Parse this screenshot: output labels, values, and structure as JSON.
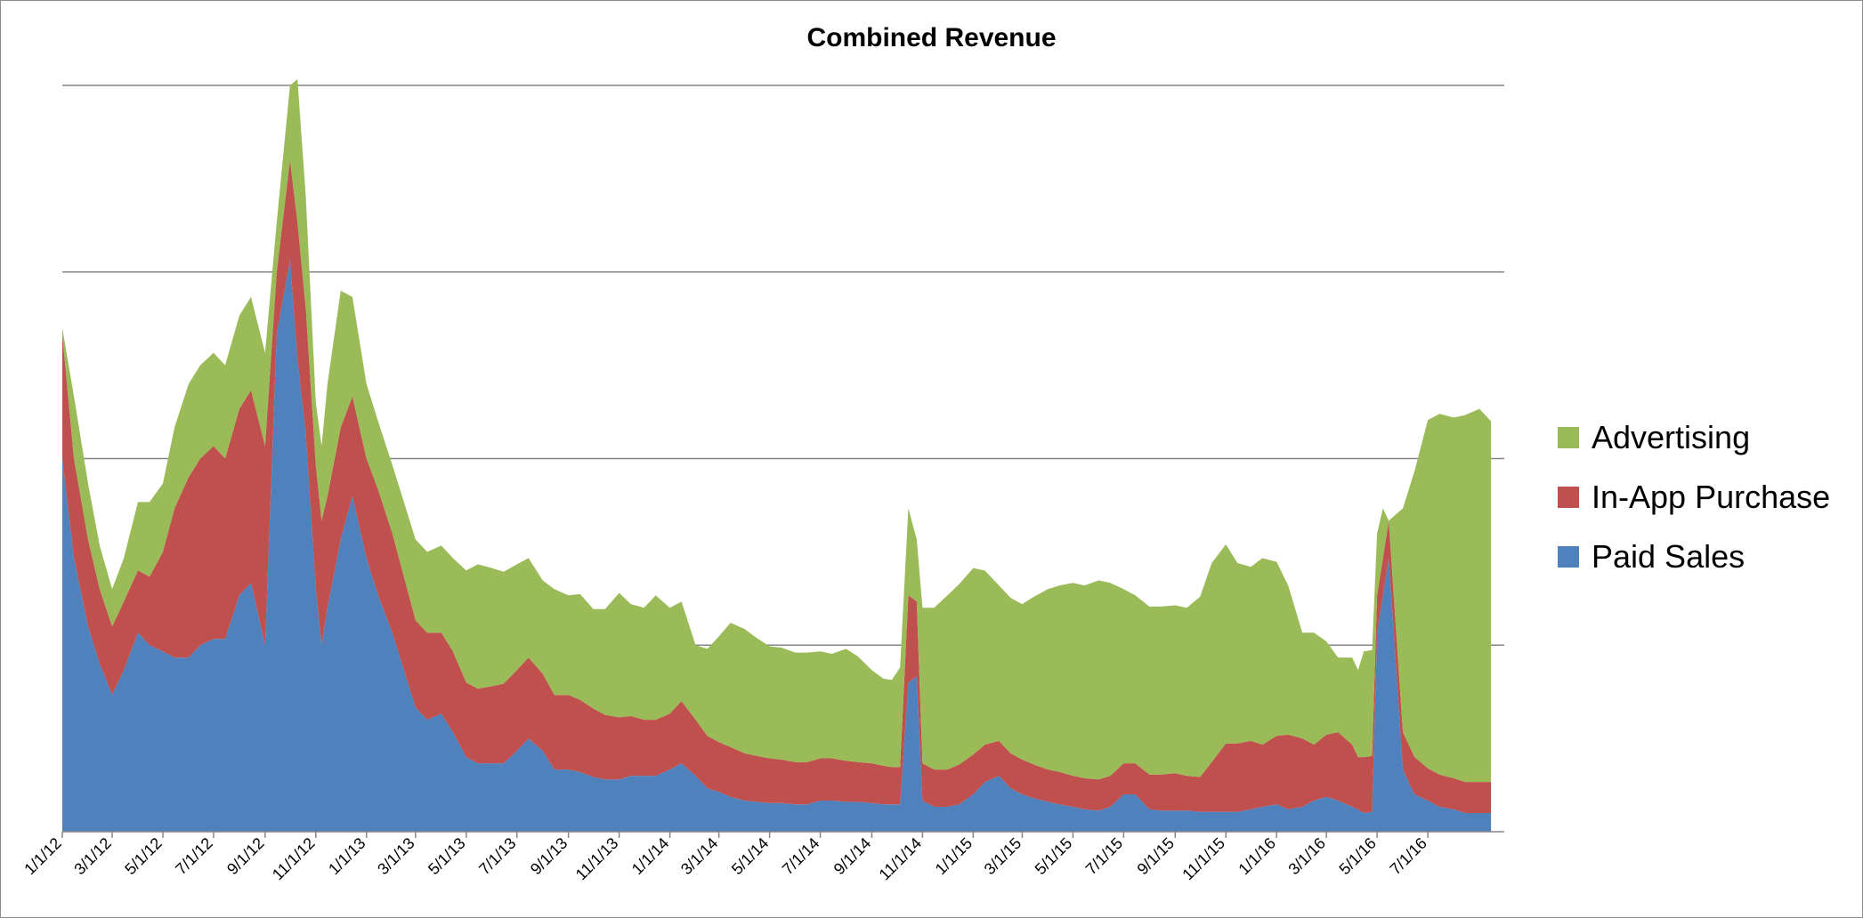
{
  "chart_data": {
    "type": "area",
    "stacked": true,
    "title": "Combined Revenue",
    "xlabel": "",
    "ylabel": "",
    "grid": true,
    "legend_position": "right",
    "y_tick_labels_shown": false,
    "ylim": [
      0,
      6
    ],
    "x_tick_labels": [
      "1/1/12",
      "3/1/12",
      "5/1/12",
      "7/1/12",
      "9/1/12",
      "11/1/12",
      "1/1/13",
      "3/1/13",
      "5/1/13",
      "7/1/13",
      "9/1/13",
      "11/1/13",
      "1/1/14",
      "3/1/14",
      "5/1/14",
      "7/1/14",
      "9/1/14",
      "11/1/14",
      "1/1/15",
      "3/1/15",
      "5/1/15",
      "7/1/15",
      "9/1/15",
      "11/1/15",
      "1/1/16",
      "3/1/16",
      "5/1/16",
      "7/1/16"
    ],
    "x": [
      "2012-01-01",
      "2012-01-15",
      "2012-02-01",
      "2012-02-15",
      "2012-03-01",
      "2012-03-15",
      "2012-04-01",
      "2012-04-15",
      "2012-05-01",
      "2012-05-15",
      "2012-06-01",
      "2012-06-15",
      "2012-07-01",
      "2012-07-15",
      "2012-08-01",
      "2012-08-15",
      "2012-09-01",
      "2012-09-15",
      "2012-10-01",
      "2012-10-10",
      "2012-10-20",
      "2012-11-01",
      "2012-11-08",
      "2012-11-15",
      "2012-12-01",
      "2012-12-15",
      "2013-01-01",
      "2013-01-15",
      "2013-02-01",
      "2013-02-15",
      "2013-03-01",
      "2013-03-15",
      "2013-04-01",
      "2013-04-15",
      "2013-05-01",
      "2013-05-15",
      "2013-06-01",
      "2013-06-15",
      "2013-07-01",
      "2013-07-15",
      "2013-08-01",
      "2013-08-15",
      "2013-09-01",
      "2013-09-15",
      "2013-10-01",
      "2013-10-15",
      "2013-11-01",
      "2013-11-15",
      "2013-12-01",
      "2013-12-15",
      "2014-01-01",
      "2014-01-15",
      "2014-02-01",
      "2014-02-15",
      "2014-03-01",
      "2014-03-15",
      "2014-04-01",
      "2014-04-15",
      "2014-05-01",
      "2014-05-15",
      "2014-06-01",
      "2014-06-15",
      "2014-07-01",
      "2014-07-15",
      "2014-08-01",
      "2014-08-15",
      "2014-09-01",
      "2014-09-15",
      "2014-09-25",
      "2014-10-05",
      "2014-10-15",
      "2014-10-25",
      "2014-11-01",
      "2014-11-15",
      "2014-12-01",
      "2014-12-15",
      "2015-01-01",
      "2015-01-15",
      "2015-02-01",
      "2015-02-15",
      "2015-03-01",
      "2015-03-15",
      "2015-04-01",
      "2015-04-15",
      "2015-05-01",
      "2015-05-15",
      "2015-06-01",
      "2015-06-15",
      "2015-07-01",
      "2015-07-15",
      "2015-08-01",
      "2015-08-15",
      "2015-09-01",
      "2015-09-15",
      "2015-10-01",
      "2015-10-15",
      "2015-11-01",
      "2015-11-15",
      "2015-12-01",
      "2015-12-15",
      "2016-01-01",
      "2016-01-15",
      "2016-02-01",
      "2016-02-15",
      "2016-03-01",
      "2016-03-15",
      "2016-04-01",
      "2016-04-08",
      "2016-04-15",
      "2016-04-25",
      "2016-05-01",
      "2016-05-08",
      "2016-05-15",
      "2016-06-01",
      "2016-06-15",
      "2016-07-01",
      "2016-07-15",
      "2016-08-01",
      "2016-08-15",
      "2016-09-01",
      "2016-09-15"
    ],
    "series": [
      {
        "name": "Paid Sales",
        "color": "#4f81bd",
        "values": [
          3.0,
          2.2,
          1.65,
          1.35,
          1.1,
          1.3,
          1.6,
          1.5,
          1.45,
          1.4,
          1.4,
          1.5,
          1.55,
          1.55,
          1.9,
          2.0,
          1.5,
          4.0,
          4.6,
          3.8,
          3.2,
          1.95,
          1.5,
          1.8,
          2.35,
          2.7,
          2.2,
          1.9,
          1.6,
          1.3,
          1.0,
          0.9,
          0.95,
          0.8,
          0.6,
          0.55,
          0.55,
          0.55,
          0.65,
          0.75,
          0.65,
          0.5,
          0.5,
          0.48,
          0.44,
          0.42,
          0.42,
          0.45,
          0.45,
          0.45,
          0.5,
          0.55,
          0.45,
          0.35,
          0.32,
          0.28,
          0.25,
          0.24,
          0.23,
          0.23,
          0.22,
          0.22,
          0.25,
          0.25,
          0.24,
          0.24,
          0.23,
          0.22,
          0.22,
          0.22,
          1.2,
          1.25,
          0.25,
          0.2,
          0.2,
          0.22,
          0.3,
          0.4,
          0.45,
          0.35,
          0.3,
          0.27,
          0.24,
          0.22,
          0.2,
          0.18,
          0.17,
          0.2,
          0.3,
          0.3,
          0.18,
          0.17,
          0.17,
          0.17,
          0.16,
          0.16,
          0.16,
          0.16,
          0.18,
          0.2,
          0.22,
          0.18,
          0.2,
          0.25,
          0.28,
          0.25,
          0.2,
          0.18,
          0.15,
          0.16,
          1.6,
          1.9,
          2.2,
          0.5,
          0.3,
          0.25,
          0.2,
          0.18,
          0.15,
          0.15,
          0.15
        ]
      },
      {
        "name": "In-App Purchase",
        "color": "#c0504d",
        "values": [
          1.0,
          0.8,
          0.7,
          0.6,
          0.55,
          0.55,
          0.5,
          0.55,
          0.8,
          1.2,
          1.45,
          1.5,
          1.55,
          1.45,
          1.5,
          1.55,
          1.6,
          0.5,
          0.8,
          1.1,
          1.0,
          1.0,
          1.0,
          0.9,
          0.9,
          0.8,
          0.8,
          0.85,
          0.8,
          0.75,
          0.7,
          0.7,
          0.65,
          0.65,
          0.6,
          0.6,
          0.62,
          0.64,
          0.65,
          0.65,
          0.62,
          0.6,
          0.6,
          0.58,
          0.55,
          0.52,
          0.5,
          0.48,
          0.45,
          0.45,
          0.45,
          0.5,
          0.45,
          0.42,
          0.4,
          0.4,
          0.38,
          0.37,
          0.36,
          0.35,
          0.34,
          0.34,
          0.34,
          0.34,
          0.33,
          0.32,
          0.32,
          0.31,
          0.3,
          0.3,
          0.7,
          0.6,
          0.3,
          0.3,
          0.3,
          0.32,
          0.32,
          0.3,
          0.28,
          0.28,
          0.28,
          0.27,
          0.26,
          0.26,
          0.25,
          0.25,
          0.25,
          0.25,
          0.25,
          0.25,
          0.28,
          0.29,
          0.3,
          0.28,
          0.28,
          0.4,
          0.55,
          0.55,
          0.55,
          0.5,
          0.55,
          0.6,
          0.55,
          0.45,
          0.5,
          0.55,
          0.5,
          0.42,
          0.45,
          0.45,
          0.3,
          0.3,
          0.3,
          0.3,
          0.3,
          0.26,
          0.26,
          0.25,
          0.25,
          0.25,
          0.25
        ]
      },
      {
        "name": "Advertising",
        "color": "#9bbb59",
        "values": [
          0.05,
          0.5,
          0.45,
          0.35,
          0.3,
          0.35,
          0.55,
          0.6,
          0.55,
          0.65,
          0.75,
          0.75,
          0.75,
          0.75,
          0.75,
          0.75,
          0.75,
          0.4,
          0.6,
          1.15,
          0.9,
          0.5,
          0.6,
          0.9,
          1.1,
          0.8,
          0.6,
          0.55,
          0.55,
          0.6,
          0.65,
          0.65,
          0.7,
          0.75,
          0.9,
          1.0,
          0.95,
          0.9,
          0.85,
          0.8,
          0.75,
          0.85,
          0.8,
          0.85,
          0.8,
          0.85,
          1.0,
          0.9,
          0.9,
          1.0,
          0.85,
          0.8,
          0.6,
          0.7,
          0.85,
          1.0,
          1.0,
          0.95,
          0.9,
          0.9,
          0.88,
          0.88,
          0.86,
          0.84,
          0.9,
          0.85,
          0.75,
          0.7,
          0.7,
          0.8,
          0.7,
          0.5,
          1.25,
          1.3,
          1.4,
          1.45,
          1.5,
          1.4,
          1.25,
          1.25,
          1.25,
          1.35,
          1.45,
          1.5,
          1.55,
          1.55,
          1.6,
          1.55,
          1.4,
          1.35,
          1.35,
          1.35,
          1.35,
          1.35,
          1.45,
          1.6,
          1.6,
          1.45,
          1.4,
          1.5,
          1.4,
          1.2,
          0.85,
          0.9,
          0.75,
          0.6,
          0.7,
          0.7,
          0.85,
          0.85,
          0.5,
          0.4,
          0.0,
          1.8,
          2.3,
          2.8,
          2.9,
          2.9,
          2.95,
          3.0,
          2.9
        ]
      }
    ]
  }
}
